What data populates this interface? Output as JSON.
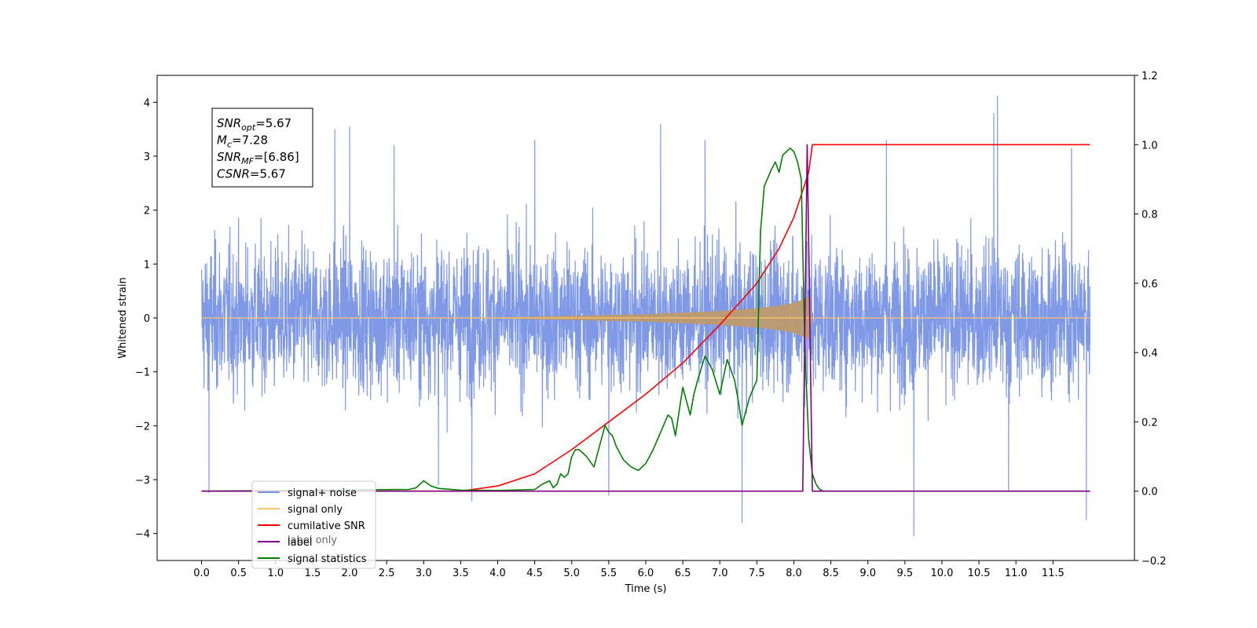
{
  "chart_data": {
    "type": "line",
    "xlabel": "Time (s)",
    "ylabel": "Whitened strain",
    "xlim": [
      -0.6,
      12.6
    ],
    "ylim": [
      -4.5,
      4.5
    ],
    "y2lim": [
      -0.2,
      1.2
    ],
    "x_ticks": [
      "0.0",
      "0.5",
      "1.0",
      "1.5",
      "2.0",
      "2.5",
      "3.0",
      "3.5",
      "4.0",
      "4.5",
      "5.0",
      "5.5",
      "6.0",
      "6.5",
      "7.0",
      "7.5",
      "8.0",
      "8.5",
      "9.0",
      "9.5",
      "10.0",
      "10.5",
      "11.0",
      "11.5"
    ],
    "y_ticks": [
      "−4",
      "−3",
      "−2",
      "−1",
      "0",
      "1",
      "2",
      "3",
      "4"
    ],
    "y2_ticks": [
      "−0.2",
      "0.0",
      "0.2",
      "0.4",
      "0.6",
      "0.8",
      "1.0",
      "1.2"
    ],
    "annotation": {
      "lines": [
        {
          "name": "SNR",
          "sub": "opt",
          "value": "=5.67"
        },
        {
          "name": "M",
          "sub": "c",
          "value": "=7.28"
        },
        {
          "name": "SNR",
          "sub": "MF",
          "value": "=[6.86]"
        },
        {
          "name": "CSNR",
          "sub": "",
          "value": "=5.67"
        }
      ]
    },
    "legend": {
      "placement": "lower-left",
      "entries": [
        {
          "label": "signal+ noise",
          "color": "#7893e6"
        },
        {
          "label": "signal only",
          "color": "#ffc56b"
        },
        {
          "label": "cumilative SNR",
          "color": "#ff0000"
        },
        {
          "label": "label",
          "color": "#800080"
        },
        {
          "label": "signal statistics",
          "color": "#008000"
        }
      ],
      "ghost_text": "label only"
    },
    "series": [
      {
        "name": "signal+ noise",
        "axis": "left",
        "color": "#7893e6",
        "x_range": [
          0.0,
          12.0
        ],
        "envelope_min": -4.1,
        "envelope_max": 4.1,
        "spikes": [
          {
            "x": 10.75,
            "y": 4.12
          },
          {
            "x": 10.7,
            "y": 3.8
          },
          {
            "x": 9.62,
            "y": -4.05
          },
          {
            "x": 7.3,
            "y": -3.8
          },
          {
            "x": 11.95,
            "y": -3.75
          },
          {
            "x": 2.0,
            "y": 3.55
          },
          {
            "x": 1.8,
            "y": 3.5
          },
          {
            "x": 6.2,
            "y": 3.6
          },
          {
            "x": 4.5,
            "y": 3.3
          },
          {
            "x": 3.65,
            "y": -3.4
          },
          {
            "x": 5.5,
            "y": -3.3
          },
          {
            "x": 0.1,
            "y": -3.25
          },
          {
            "x": 9.25,
            "y": 3.3
          },
          {
            "x": 2.6,
            "y": 3.2
          },
          {
            "x": 11.75,
            "y": 3.15
          },
          {
            "x": 6.8,
            "y": 3.3
          },
          {
            "x": 3.2,
            "y": -3.1
          },
          {
            "x": 10.9,
            "y": -3.2
          }
        ]
      },
      {
        "name": "signal only",
        "axis": "left",
        "color": "#ffc56b",
        "envelope": {
          "x": [
            0.0,
            4.0,
            5.0,
            6.0,
            6.5,
            7.0,
            7.5,
            7.8,
            8.0,
            8.15,
            8.2,
            8.25,
            12.0
          ],
          "amp": [
            0.0,
            0.01,
            0.04,
            0.07,
            0.1,
            0.13,
            0.18,
            0.23,
            0.28,
            0.36,
            0.4,
            0.0,
            0.0
          ]
        }
      },
      {
        "name": "cumilative SNR",
        "axis": "right",
        "color": "#ff0000",
        "x": [
          0.0,
          3.5,
          4.0,
          4.5,
          5.0,
          5.5,
          6.0,
          6.5,
          7.0,
          7.5,
          7.8,
          8.0,
          8.2,
          8.25,
          12.0
        ],
        "values": [
          0.0,
          0.0,
          0.015,
          0.05,
          0.12,
          0.2,
          0.28,
          0.37,
          0.48,
          0.6,
          0.7,
          0.79,
          0.92,
          1.0,
          1.0
        ]
      },
      {
        "name": "label",
        "axis": "right",
        "color": "#800080",
        "x": [
          0.0,
          8.12,
          8.18,
          8.25,
          12.0
        ],
        "values": [
          0.0,
          0.0,
          1.0,
          0.0,
          0.0
        ]
      },
      {
        "name": "signal statistics",
        "axis": "right",
        "color": "#008000",
        "x": [
          0.0,
          2.8,
          2.9,
          3.0,
          3.1,
          3.2,
          3.5,
          4.0,
          4.5,
          4.6,
          4.7,
          4.75,
          4.8,
          4.85,
          4.9,
          4.95,
          5.0,
          5.05,
          5.1,
          5.2,
          5.3,
          5.4,
          5.45,
          5.5,
          5.55,
          5.6,
          5.7,
          5.8,
          5.9,
          6.0,
          6.1,
          6.2,
          6.3,
          6.35,
          6.4,
          6.5,
          6.6,
          6.65,
          6.7,
          6.8,
          6.9,
          7.0,
          7.1,
          7.2,
          7.25,
          7.3,
          7.4,
          7.5,
          7.55,
          7.6,
          7.7,
          7.75,
          7.8,
          7.85,
          7.9,
          7.95,
          8.0,
          8.05,
          8.1,
          8.15,
          8.2,
          8.25,
          8.3,
          8.35,
          8.4,
          8.5,
          9.0,
          12.0
        ],
        "values": [
          0.0,
          0.005,
          0.01,
          0.03,
          0.015,
          0.008,
          0.003,
          0.002,
          0.005,
          0.02,
          0.03,
          0.01,
          0.02,
          0.05,
          0.04,
          0.05,
          0.1,
          0.12,
          0.12,
          0.1,
          0.07,
          0.15,
          0.19,
          0.17,
          0.16,
          0.13,
          0.09,
          0.07,
          0.06,
          0.08,
          0.12,
          0.17,
          0.22,
          0.21,
          0.16,
          0.3,
          0.22,
          0.28,
          0.32,
          0.39,
          0.35,
          0.28,
          0.38,
          0.32,
          0.26,
          0.19,
          0.27,
          0.32,
          0.75,
          0.88,
          0.93,
          0.95,
          0.92,
          0.97,
          0.98,
          0.99,
          0.98,
          0.95,
          0.9,
          0.4,
          0.15,
          0.05,
          0.02,
          0.005,
          0.0,
          0.0,
          0.0,
          0.0
        ]
      }
    ]
  }
}
